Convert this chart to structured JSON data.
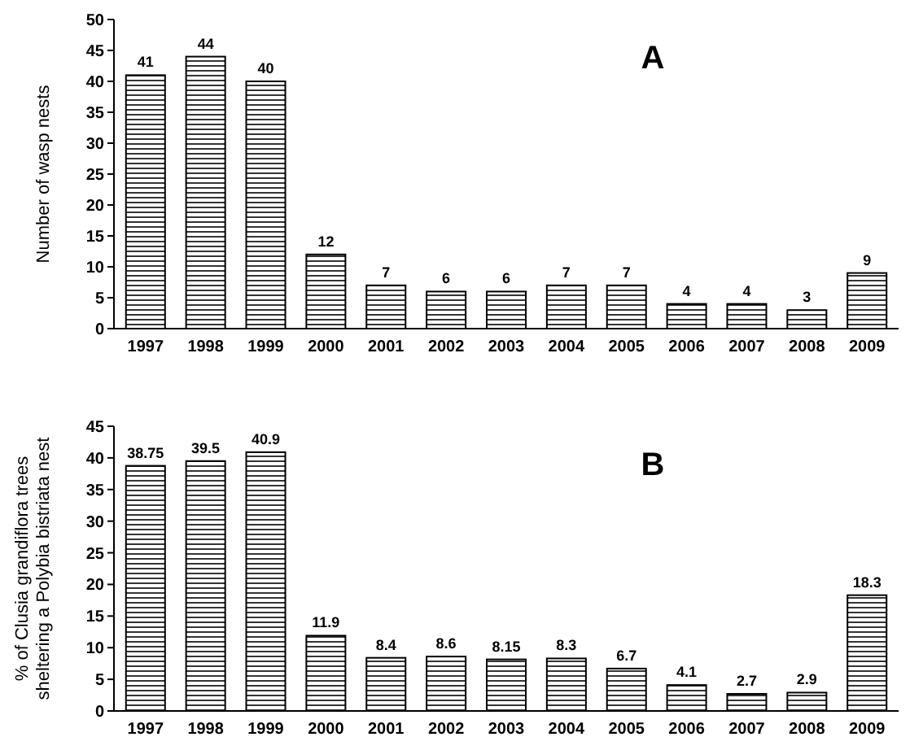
{
  "chart_data": [
    {
      "type": "bar",
      "title": "A",
      "ylabel": "Number of wasp nests",
      "categories": [
        "1997",
        "1998",
        "1999",
        "2000",
        "2001",
        "2002",
        "2003",
        "2004",
        "2005",
        "2006",
        "2007",
        "2008",
        "2009"
      ],
      "values": [
        41,
        44,
        40,
        12,
        7,
        6,
        6,
        7,
        7,
        4,
        4,
        3,
        9
      ],
      "color": "#000000",
      "ylim": [
        0,
        50
      ],
      "yticks": [
        0,
        5,
        10,
        15,
        20,
        25,
        30,
        35,
        40,
        45,
        50
      ],
      "data_labels": true
    },
    {
      "type": "bar",
      "title": "B",
      "ylabel": "% of Clusia grandiflora trees sheltering a Polybia bistriata nest",
      "categories": [
        "1997",
        "1998",
        "1999",
        "2000",
        "2001",
        "2002",
        "2003",
        "2004",
        "2005",
        "2006",
        "2007",
        "2008",
        "2009"
      ],
      "values": [
        38.75,
        39.5,
        40.9,
        11.9,
        8.4,
        8.6,
        8.15,
        8.3,
        6.7,
        4.1,
        2.7,
        2.9,
        18.3
      ],
      "color": "#000000",
      "ylim": [
        0,
        45
      ],
      "yticks": [
        0,
        5,
        10,
        15,
        20,
        25,
        30,
        35,
        40,
        45
      ],
      "data_labels": true
    }
  ]
}
